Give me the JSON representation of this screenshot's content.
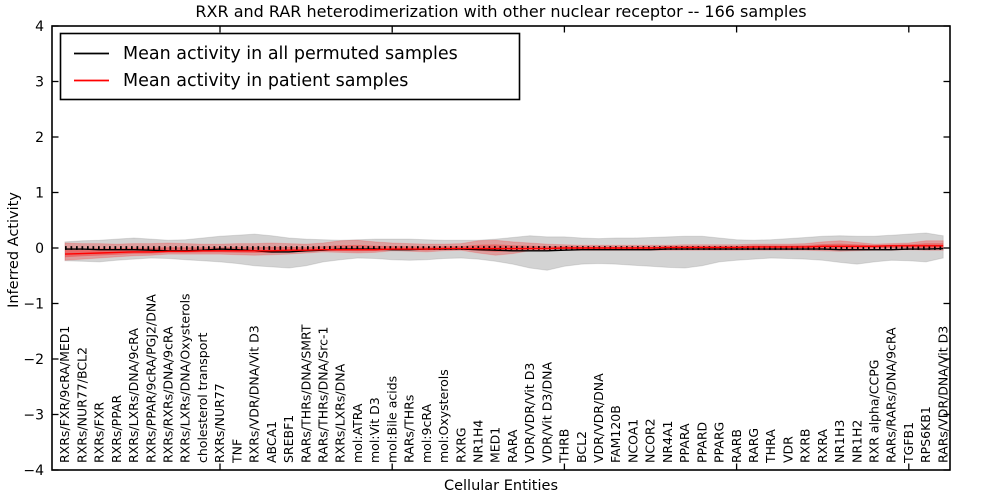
{
  "legend": {
    "items": [
      {
        "label": "Mean activity in all permuted samples",
        "color": "#000000"
      },
      {
        "label": "Mean activity in patient samples",
        "color": "#ff0000"
      }
    ]
  },
  "chart_data": {
    "type": "line",
    "title": "RXR and RAR heterodimerization with other nuclear receptor -- 166 samples",
    "xlabel": "Cellular Entities",
    "ylabel": "Inferred Activity",
    "ylim": [
      -4,
      4
    ],
    "yticks": [
      4,
      3,
      2,
      1,
      0,
      -1,
      -2,
      -3,
      -4
    ],
    "major_x_tick_indices": [
      9,
      19,
      29,
      39,
      49
    ],
    "grid": false,
    "legend_position": "upper left",
    "zero_reference_line": true,
    "categories": [
      "RXRs/FXR/9cRA/MED1",
      "RXRs/NUR77/BCL2",
      "RXRs/FXR",
      "RXRs/PPAR",
      "RXRs/LXRs/DNA/9cRA",
      "RXRs/PPAR/9cRA/PGJ2/DNA",
      "RXRs/RXRs/DNA/9cRA",
      "RXRs/LXRs/DNA/Oxysterols",
      "cholesterol transport",
      "RXRs/NUR77",
      "TNF",
      "RXRs/VDR/DNA/Vit D3",
      "ABCA1",
      "SREBF1",
      "RARs/THRs/DNA/SMRT",
      "RARs/THRs/DNA/Src-1",
      "RXRs/LXRs/DNA",
      "mol:ATRA",
      "mol:Vit D3",
      "mol:Bile acids",
      "RARs/THRs",
      "mol:9cRA",
      "mol:Oxysterols",
      "RXRG",
      "NR1H4",
      "MED1",
      "RARA",
      "VDR/VDR/Vit D3",
      "VDR/Vit D3/DNA",
      "THRB",
      "BCL2",
      "VDR/VDR/DNA",
      "FAM120B",
      "NCOA1",
      "NCOR2",
      "NR4A1",
      "PPARA",
      "PPARD",
      "PPARG",
      "RARB",
      "RARG",
      "THRA",
      "VDR",
      "RXRB",
      "RXRA",
      "NR1H3",
      "NR1H2",
      "RXR alpha/CCPG",
      "RARs/RARs/DNA/9cRA",
      "TGFB1",
      "RPS6KB1",
      "RARs/VDR/DNA/Vit D3"
    ],
    "series": [
      {
        "name": "Mean activity in all permuted samples",
        "color": "#000000",
        "values": [
          -0.02,
          -0.02,
          -0.03,
          -0.03,
          -0.03,
          -0.04,
          -0.05,
          -0.05,
          -0.04,
          -0.02,
          -0.03,
          -0.05,
          -0.07,
          -0.07,
          -0.05,
          -0.04,
          -0.02,
          -0.02,
          -0.02,
          -0.03,
          -0.03,
          -0.02,
          -0.02,
          -0.02,
          -0.03,
          -0.04,
          -0.05,
          -0.05,
          -0.05,
          -0.04,
          -0.03,
          -0.03,
          -0.03,
          -0.03,
          -0.03,
          -0.02,
          -0.02,
          -0.02,
          -0.02,
          -0.02,
          -0.02,
          -0.02,
          -0.02,
          -0.02,
          -0.02,
          -0.03,
          -0.03,
          -0.03,
          -0.03,
          -0.02,
          -0.02,
          -0.01
        ]
      },
      {
        "name": "Mean activity in patient samples",
        "color": "#ff0000",
        "values": [
          -0.11,
          -0.1,
          -0.09,
          -0.08,
          -0.07,
          -0.07,
          -0.06,
          -0.06,
          -0.05,
          -0.05,
          -0.05,
          -0.05,
          -0.05,
          -0.04,
          -0.04,
          -0.03,
          -0.03,
          -0.03,
          -0.03,
          -0.02,
          -0.02,
          -0.02,
          -0.01,
          -0.01,
          -0.01,
          -0.01,
          -0.01,
          -0.01,
          -0.01,
          0.0,
          0.0,
          0.0,
          0.0,
          0.0,
          0.0,
          0.01,
          0.01,
          0.01,
          0.01,
          0.01,
          0.02,
          0.02,
          0.02,
          0.02,
          0.03,
          0.03,
          0.03,
          0.03,
          0.04,
          0.04,
          0.04,
          0.04
        ]
      }
    ],
    "bands": [
      {
        "name": "permuted-samples-range",
        "color": "#8c8c8c",
        "opacity": 0.38,
        "upper": [
          0.11,
          0.13,
          0.14,
          0.16,
          0.18,
          0.16,
          0.14,
          0.15,
          0.18,
          0.21,
          0.23,
          0.25,
          0.22,
          0.18,
          0.16,
          0.15,
          0.14,
          0.15,
          0.16,
          0.16,
          0.16,
          0.15,
          0.14,
          0.14,
          0.14,
          0.16,
          0.19,
          0.22,
          0.2,
          0.2,
          0.18,
          0.17,
          0.18,
          0.18,
          0.19,
          0.2,
          0.21,
          0.21,
          0.18,
          0.15,
          0.14,
          0.15,
          0.17,
          0.19,
          0.21,
          0.22,
          0.21,
          0.21,
          0.23,
          0.25,
          0.27,
          0.22
        ],
        "lower": [
          -0.23,
          -0.24,
          -0.25,
          -0.22,
          -0.2,
          -0.18,
          -0.19,
          -0.21,
          -0.23,
          -0.25,
          -0.28,
          -0.32,
          -0.34,
          -0.36,
          -0.32,
          -0.25,
          -0.21,
          -0.18,
          -0.19,
          -0.21,
          -0.22,
          -0.21,
          -0.19,
          -0.18,
          -0.2,
          -0.24,
          -0.29,
          -0.36,
          -0.4,
          -0.33,
          -0.29,
          -0.28,
          -0.29,
          -0.31,
          -0.33,
          -0.35,
          -0.36,
          -0.32,
          -0.25,
          -0.22,
          -0.2,
          -0.18,
          -0.19,
          -0.2,
          -0.22,
          -0.26,
          -0.29,
          -0.25,
          -0.22,
          -0.23,
          -0.25,
          -0.18
        ]
      },
      {
        "name": "patient-samples-range",
        "color": "#ff0000",
        "opacity": 0.25,
        "upper": [
          0.09,
          0.08,
          0.08,
          0.07,
          0.08,
          0.08,
          0.09,
          0.08,
          0.07,
          0.07,
          0.08,
          0.08,
          0.09,
          0.08,
          0.07,
          0.09,
          0.13,
          0.14,
          0.11,
          0.09,
          0.08,
          0.07,
          0.07,
          0.08,
          0.13,
          0.14,
          0.11,
          0.09,
          0.07,
          0.06,
          0.05,
          0.05,
          0.05,
          0.05,
          0.05,
          0.05,
          0.06,
          0.06,
          0.06,
          0.06,
          0.07,
          0.07,
          0.07,
          0.08,
          0.11,
          0.13,
          0.1,
          0.07,
          0.08,
          0.09,
          0.13,
          0.13
        ],
        "lower": [
          -0.22,
          -0.2,
          -0.18,
          -0.16,
          -0.14,
          -0.13,
          -0.11,
          -0.11,
          -0.11,
          -0.11,
          -0.12,
          -0.13,
          -0.12,
          -0.11,
          -0.09,
          -0.07,
          -0.08,
          -0.09,
          -0.08,
          -0.05,
          -0.06,
          -0.07,
          -0.05,
          -0.04,
          -0.09,
          -0.13,
          -0.1,
          -0.05,
          -0.04,
          -0.04,
          -0.04,
          -0.04,
          -0.04,
          -0.04,
          -0.04,
          -0.04,
          -0.04,
          -0.04,
          -0.04,
          -0.04,
          -0.04,
          -0.04,
          -0.04,
          -0.04,
          -0.05,
          -0.06,
          -0.05,
          -0.04,
          -0.04,
          -0.03,
          -0.04,
          -0.04
        ]
      }
    ]
  }
}
